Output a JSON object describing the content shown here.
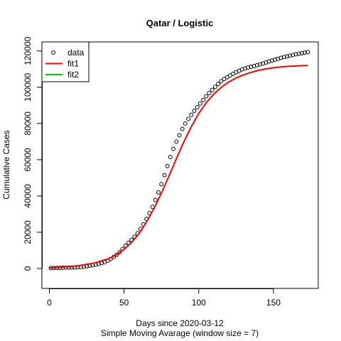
{
  "chart_data": {
    "type": "scatter",
    "title": "Qatar / Logistic",
    "xlabel": "Days since 2020-03-12",
    "sublabel": "Simple Moving Avarage (window size = 7)",
    "ylabel": "Cumulative Cases",
    "xlim": [
      -5,
      180
    ],
    "ylim": [
      -11000,
      125000
    ],
    "xticks": [
      0,
      50,
      100,
      150
    ],
    "yticks": [
      0,
      20000,
      40000,
      60000,
      80000,
      100000,
      120000
    ],
    "legend": {
      "position": "top-left",
      "entries": [
        {
          "label": "data",
          "kind": "point",
          "color": "#000000"
        },
        {
          "label": "fit1",
          "kind": "line",
          "color": "#ff0000"
        },
        {
          "label": "fit2",
          "kind": "line",
          "color": "#00cd00"
        }
      ]
    },
    "series": [
      {
        "name": "data",
        "kind": "points",
        "color": "#000000",
        "x": [
          1,
          3,
          5,
          7,
          9,
          11,
          13,
          15,
          17,
          19,
          21,
          23,
          25,
          27,
          29,
          31,
          33,
          35,
          37,
          39,
          41,
          43,
          45,
          47,
          49,
          51,
          53,
          55,
          57,
          59,
          61,
          63,
          65,
          67,
          69,
          71,
          73,
          75,
          77,
          79,
          81,
          83,
          85,
          87,
          89,
          91,
          93,
          95,
          97,
          99,
          101,
          103,
          105,
          107,
          109,
          111,
          113,
          115,
          117,
          119,
          121,
          123,
          125,
          127,
          129,
          131,
          133,
          135,
          137,
          139,
          141,
          143,
          145,
          147,
          149,
          151,
          153,
          155,
          157,
          159,
          161,
          163,
          165,
          167,
          169,
          171,
          173
        ],
        "y": [
          200,
          250,
          300,
          350,
          400,
          450,
          500,
          550,
          600,
          700,
          800,
          1000,
          1200,
          1500,
          1800,
          2100,
          2500,
          3000,
          3500,
          4300,
          5200,
          6300,
          7500,
          9000,
          10800,
          12600,
          14200,
          15800,
          17500,
          19400,
          21800,
          24300,
          27300,
          30500,
          34000,
          37800,
          42000,
          46500,
          51500,
          56500,
          61500,
          66000,
          70000,
          73500,
          77000,
          80000,
          82500,
          84800,
          87000,
          89000,
          91000,
          93000,
          95000,
          96800,
          98500,
          100200,
          101800,
          103300,
          104500,
          105500,
          106500,
          107400,
          108300,
          109100,
          109800,
          110400,
          110900,
          111300,
          111700,
          112100,
          112600,
          113100,
          113700,
          114200,
          114700,
          115200,
          115700,
          116200,
          116600,
          117000,
          117400,
          117800,
          118200,
          118500,
          118800,
          119100,
          119300
        ]
      },
      {
        "name": "fit1",
        "kind": "line",
        "color": "#ff0000",
        "x": [
          0,
          10,
          20,
          30,
          40,
          45,
          50,
          55,
          60,
          65,
          70,
          75,
          80,
          85,
          90,
          95,
          100,
          105,
          110,
          115,
          120,
          125,
          130,
          135,
          140,
          145,
          150,
          155,
          160,
          165,
          170,
          173
        ],
        "y": [
          300,
          800,
          1600,
          3000,
          5500,
          7600,
          10500,
          14300,
          19200,
          25500,
          33000,
          41500,
          50800,
          60500,
          69800,
          78200,
          85500,
          91400,
          96100,
          99900,
          102800,
          105100,
          106800,
          108200,
          109300,
          110100,
          110700,
          111200,
          111500,
          111700,
          111900,
          112000
        ]
      },
      {
        "name": "fit2",
        "kind": "line",
        "color": "#00cd00",
        "x": [],
        "y": []
      }
    ]
  }
}
